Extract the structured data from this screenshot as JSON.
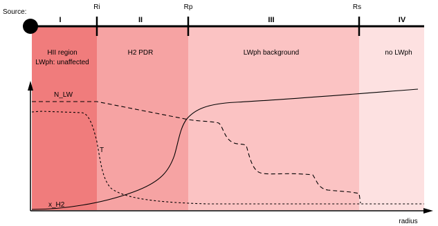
{
  "source_label": "Source:",
  "regions": [
    {
      "numeral": "I",
      "label_lines": [
        "HII region",
        "LWph: unaffected"
      ],
      "color": "#f07c7c"
    },
    {
      "numeral": "II",
      "label_lines": [
        "H2 PDR"
      ],
      "color": "#f6a3a3"
    },
    {
      "numeral": "III",
      "label_lines": [
        "LWph background"
      ],
      "color": "#fbc3c3"
    },
    {
      "numeral": "IV",
      "label_lines": [
        "no LWph"
      ],
      "color": "#fde1e1"
    }
  ],
  "boundaries": [
    "Ri",
    "Rp",
    "Rs"
  ],
  "curves": {
    "n_lw": "N_LW",
    "t": "T",
    "x_h2": "x_H2"
  },
  "axis": {
    "x_label": "radius"
  }
}
